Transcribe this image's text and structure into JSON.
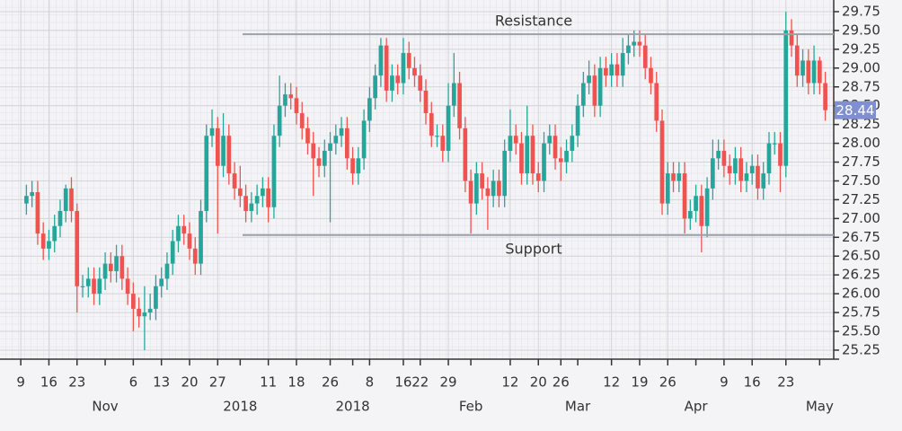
{
  "chart_data": {
    "type": "candlestick",
    "colors": {
      "up": "#26a69a",
      "down": "#ef5350",
      "last": "#7f8fd0",
      "level": "#9aa0aa"
    },
    "open": [
      27.2,
      27.3,
      27.35,
      26.8,
      26.6,
      26.7,
      26.9,
      27.1,
      27.4,
      27.1,
      26.1,
      26.1,
      26.2,
      26.0,
      26.2,
      26.4,
      26.3,
      26.5,
      26.2,
      26.0,
      25.8,
      25.7,
      25.75,
      25.8,
      26.1,
      26.2,
      26.4,
      26.7,
      26.9,
      26.8,
      26.6,
      26.4,
      27.1,
      28.1,
      28.2,
      27.7,
      28.1,
      27.6,
      27.4,
      27.3,
      27.1,
      27.2,
      27.3,
      27.4,
      27.15,
      28.1,
      28.5,
      28.65,
      28.6,
      28.4,
      28.2,
      28.0,
      27.8,
      27.7,
      27.9,
      28.0,
      28.1,
      28.2,
      27.8,
      27.6,
      27.8,
      28.3,
      28.6,
      28.9,
      29.3,
      28.7,
      28.9,
      28.8,
      29.2,
      29.0,
      28.9,
      28.7,
      28.4,
      28.1,
      28.1,
      27.9,
      28.5,
      28.8,
      28.2,
      27.5,
      27.2,
      27.6,
      27.4,
      27.3,
      27.5,
      27.3,
      27.9,
      28.1,
      28.0,
      27.6,
      28.1,
      27.6,
      27.5,
      28.0,
      28.1,
      27.8,
      27.75,
      27.9,
      28.1,
      28.5,
      28.8,
      28.9,
      28.5,
      29.0,
      28.9,
      29.05,
      28.9,
      29.2,
      29.3,
      29.35,
      29.3,
      29.0,
      28.8,
      28.3,
      27.2,
      27.6,
      27.5,
      27.6,
      27.0,
      27.1,
      27.3,
      26.9,
      27.4,
      27.8,
      27.9,
      27.7,
      27.6,
      27.8,
      27.5,
      27.6,
      27.7,
      27.4,
      27.6,
      28.0,
      28.0,
      27.7,
      29.5,
      29.3,
      28.9,
      29.1,
      28.8,
      29.1,
      28.8
    ],
    "high": [
      27.45,
      27.5,
      27.5,
      26.95,
      26.85,
      27.05,
      27.25,
      27.45,
      27.55,
      27.2,
      26.25,
      26.35,
      26.35,
      26.35,
      26.55,
      26.55,
      26.65,
      26.65,
      26.35,
      26.15,
      25.95,
      26.1,
      26.0,
      26.25,
      26.35,
      26.55,
      26.85,
      27.05,
      27.05,
      26.95,
      26.75,
      27.25,
      28.25,
      28.45,
      28.35,
      28.4,
      28.25,
      27.75,
      27.7,
      27.45,
      27.35,
      27.45,
      27.55,
      27.55,
      28.25,
      28.9,
      28.8,
      28.8,
      28.75,
      28.55,
      28.35,
      28.15,
      27.95,
      28.05,
      28.15,
      28.25,
      28.35,
      28.35,
      27.95,
      27.95,
      28.45,
      28.75,
      29.05,
      29.4,
      29.4,
      29.05,
      29.05,
      29.4,
      29.35,
      29.15,
      29.05,
      28.85,
      28.55,
      28.25,
      28.25,
      28.8,
      29.2,
      28.95,
      28.35,
      27.65,
      27.75,
      27.75,
      27.55,
      27.65,
      27.65,
      28.05,
      28.45,
      28.25,
      28.15,
      28.5,
      28.25,
      27.75,
      28.15,
      28.25,
      28.25,
      27.95,
      28.05,
      28.25,
      28.65,
      28.95,
      29.1,
      29.05,
      29.15,
      29.15,
      29.2,
      29.2,
      29.4,
      29.45,
      29.5,
      29.5,
      29.45,
      29.15,
      28.95,
      28.45,
      27.75,
      27.75,
      27.75,
      27.75,
      27.25,
      27.45,
      27.45,
      27.55,
      28.05,
      28.05,
      28.05,
      27.85,
      27.95,
      27.95,
      27.75,
      27.85,
      27.85,
      27.75,
      28.15,
      28.15,
      28.15,
      29.75,
      29.65,
      29.45,
      29.25,
      29.25,
      29.3,
      29.15,
      28.95
    ],
    "low": [
      27.05,
      27.15,
      26.65,
      26.45,
      26.45,
      26.55,
      26.75,
      26.95,
      26.95,
      25.75,
      25.95,
      25.95,
      25.85,
      25.85,
      26.05,
      26.15,
      26.15,
      26.05,
      25.85,
      25.5,
      25.55,
      25.25,
      25.65,
      25.65,
      25.95,
      26.05,
      26.25,
      26.55,
      26.65,
      26.45,
      26.25,
      26.25,
      26.95,
      27.95,
      26.8,
      27.55,
      27.45,
      27.25,
      27.15,
      26.95,
      26.95,
      27.05,
      27.15,
      26.95,
      27.0,
      27.95,
      28.35,
      28.45,
      28.25,
      28.05,
      27.85,
      27.3,
      27.55,
      27.55,
      26.95,
      27.85,
      27.95,
      27.65,
      27.45,
      27.45,
      27.65,
      28.15,
      28.45,
      28.75,
      28.55,
      28.55,
      28.65,
      28.65,
      28.85,
      28.75,
      28.55,
      28.25,
      27.95,
      27.95,
      27.75,
      27.75,
      28.35,
      28.05,
      27.35,
      26.8,
      27.05,
      27.25,
      26.85,
      27.15,
      27.15,
      27.15,
      27.75,
      27.85,
      27.45,
      27.45,
      27.45,
      27.35,
      27.35,
      27.85,
      27.65,
      27.5,
      27.6,
      27.75,
      27.95,
      28.35,
      28.65,
      28.35,
      28.35,
      28.75,
      28.75,
      28.75,
      28.75,
      29.05,
      29.15,
      29.15,
      28.85,
      28.65,
      28.15,
      27.05,
      27.05,
      27.35,
      27.35,
      26.8,
      26.85,
      26.95,
      26.55,
      26.75,
      27.25,
      27.65,
      27.55,
      27.45,
      27.45,
      27.35,
      27.35,
      27.45,
      27.25,
      27.25,
      27.45,
      27.85,
      27.35,
      27.55,
      29.15,
      28.75,
      28.75,
      28.65,
      28.65,
      28.65,
      28.3
    ],
    "close": [
      27.3,
      27.35,
      26.8,
      26.6,
      26.7,
      26.9,
      27.1,
      27.4,
      27.1,
      26.1,
      26.1,
      26.2,
      26.0,
      26.2,
      26.4,
      26.3,
      26.5,
      26.2,
      26.0,
      25.8,
      25.7,
      25.75,
      25.8,
      26.1,
      26.2,
      26.4,
      26.7,
      26.9,
      26.8,
      26.6,
      26.4,
      27.1,
      28.1,
      28.2,
      27.7,
      28.1,
      27.6,
      27.4,
      27.3,
      27.1,
      27.2,
      27.3,
      27.4,
      27.15,
      28.1,
      28.5,
      28.65,
      28.6,
      28.4,
      28.2,
      28.0,
      27.8,
      27.7,
      27.9,
      28.0,
      28.1,
      28.2,
      27.8,
      27.6,
      27.8,
      28.3,
      28.6,
      28.9,
      29.3,
      28.7,
      28.9,
      28.8,
      29.2,
      29.0,
      28.9,
      28.7,
      28.4,
      28.1,
      28.1,
      27.9,
      28.5,
      28.8,
      28.2,
      27.5,
      27.2,
      27.6,
      27.4,
      27.3,
      27.5,
      27.3,
      27.9,
      28.1,
      28.0,
      27.6,
      28.1,
      27.6,
      27.5,
      28.0,
      28.1,
      27.8,
      27.75,
      27.9,
      28.1,
      28.5,
      28.8,
      28.9,
      28.5,
      29.0,
      28.9,
      29.05,
      28.9,
      29.2,
      29.3,
      29.35,
      29.3,
      29.0,
      28.8,
      28.3,
      27.2,
      27.6,
      27.5,
      27.6,
      27.0,
      27.1,
      27.3,
      26.9,
      27.4,
      27.8,
      27.9,
      27.7,
      27.6,
      27.8,
      27.5,
      27.6,
      27.7,
      27.4,
      27.6,
      28.0,
      28.0,
      27.7,
      29.5,
      29.3,
      28.9,
      29.1,
      28.8,
      29.1,
      28.8,
      28.44
    ],
    "xlim": [
      -1.5,
      143.5
    ],
    "ylim": [
      25.13,
      29.905
    ],
    "yticks": [
      25.25,
      {
        "value": 25.5,
        "label": "25.50"
      },
      25.75,
      {
        "value": 26,
        "label": "26.00"
      },
      26.25,
      {
        "value": 26.5,
        "label": "26.50"
      },
      26.75,
      {
        "value": 27,
        "label": "27.00"
      },
      27.25,
      {
        "value": 27.5,
        "label": "27.50"
      },
      27.75,
      {
        "value": 28,
        "label": "28.00"
      },
      28.25,
      {
        "value": 28.5,
        "label": "28.50"
      },
      28.75,
      {
        "value": 29,
        "label": "29.00"
      },
      29.25,
      {
        "value": 29.5,
        "label": "29.50"
      },
      29.75
    ],
    "xticks": [
      {
        "value": -1,
        "label": "9"
      },
      {
        "value": 4,
        "label": "16"
      },
      {
        "value": 9,
        "label": "23"
      },
      {
        "value": 19,
        "label": "6"
      },
      {
        "value": 24,
        "label": "13"
      },
      {
        "value": 29,
        "label": "20"
      },
      {
        "value": 34,
        "label": "27"
      },
      {
        "value": 43,
        "label": "11"
      },
      {
        "value": 48,
        "label": "18"
      },
      {
        "value": 54,
        "label": "26"
      },
      {
        "value": 61,
        "label": "8"
      },
      {
        "value": 67,
        "label": "16"
      },
      {
        "value": 70,
        "label": "22"
      },
      {
        "value": 75,
        "label": "29"
      },
      {
        "value": 86,
        "label": "12"
      },
      {
        "value": 91,
        "label": "20"
      },
      {
        "value": 95,
        "label": "26"
      },
      {
        "value": 104,
        "label": "12"
      },
      {
        "value": 109,
        "label": "19"
      },
      {
        "value": 114,
        "label": "26"
      },
      {
        "value": 124,
        "label": "9"
      },
      {
        "value": 129,
        "label": "16"
      },
      {
        "value": 135,
        "label": "23"
      }
    ],
    "xticks_period": [
      {
        "value": 14,
        "label": "Nov"
      },
      {
        "value": 38,
        "label": "2018"
      },
      {
        "value": 58,
        "label": "2018"
      },
      {
        "value": 79,
        "label": "Feb"
      },
      {
        "value": 98,
        "label": "Mar"
      },
      {
        "value": 119,
        "label": "Apr"
      },
      {
        "value": 141,
        "label": "May"
      }
    ],
    "levels": [
      {
        "label": "Resistance",
        "value": 29.45
      },
      {
        "label": "Support",
        "value": 26.78
      }
    ]
  }
}
